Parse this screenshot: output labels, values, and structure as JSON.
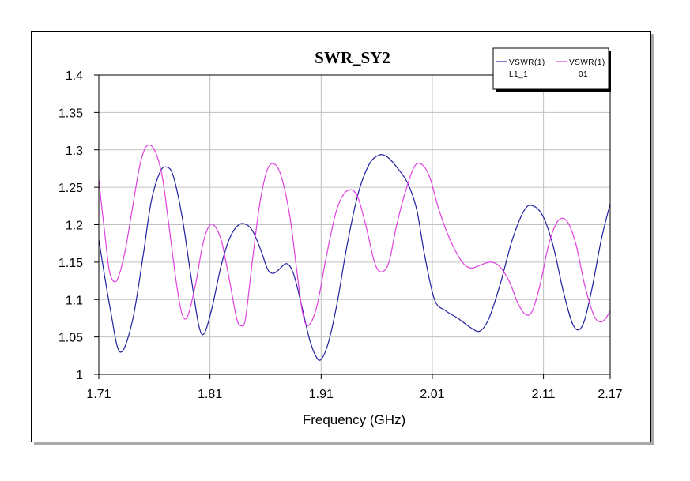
{
  "chart_data": {
    "type": "line",
    "title": "SWR_SY2",
    "xlabel": "Frequency (GHz)",
    "ylabel": "",
    "xlim": [
      1.71,
      2.17
    ],
    "ylim": [
      1.0,
      1.4
    ],
    "xticks": [
      1.71,
      1.81,
      1.91,
      2.01,
      2.11,
      2.17
    ],
    "xtick_labels": [
      "1.71",
      "1.81",
      "1.91",
      "2.01",
      "2.11",
      "2.17"
    ],
    "yticks": [
      1.0,
      1.05,
      1.1,
      1.15,
      1.2,
      1.25,
      1.3,
      1.35,
      1.4
    ],
    "ytick_labels": [
      "1",
      "1.05",
      "1.1",
      "1.15",
      "1.2",
      "1.25",
      "1.3",
      "1.35",
      "1.4"
    ],
    "grid": true,
    "legend_position": "top-right",
    "series": [
      {
        "name": "VSWR(1) L1_1",
        "legend_line1": "VSWR(1)",
        "legend_line2": "L1_1",
        "color": "#2020a0",
        "x": [
          1.71,
          1.72,
          1.729,
          1.74,
          1.75,
          1.757,
          1.765,
          1.771,
          1.777,
          1.785,
          1.793,
          1.8,
          1.805,
          1.812,
          1.82,
          1.828,
          1.836,
          1.843,
          1.849,
          1.856,
          1.862,
          1.867,
          1.872,
          1.879,
          1.885,
          1.892,
          1.899,
          1.905,
          1.91,
          1.917,
          1.925,
          1.933,
          1.943,
          1.953,
          1.962,
          1.97,
          1.979,
          1.988,
          1.996,
          2.003,
          2.012,
          2.022,
          2.033,
          2.045,
          2.053,
          2.061,
          2.071,
          2.082,
          2.093,
          2.101,
          2.11,
          2.119,
          2.128,
          2.137,
          2.145,
          2.153,
          2.162,
          2.17
        ],
        "values": [
          1.18,
          1.09,
          1.03,
          1.07,
          1.16,
          1.23,
          1.27,
          1.277,
          1.265,
          1.21,
          1.13,
          1.065,
          1.055,
          1.09,
          1.145,
          1.183,
          1.2,
          1.2,
          1.19,
          1.165,
          1.14,
          1.135,
          1.14,
          1.148,
          1.135,
          1.095,
          1.05,
          1.025,
          1.02,
          1.045,
          1.1,
          1.17,
          1.24,
          1.28,
          1.293,
          1.29,
          1.275,
          1.255,
          1.22,
          1.16,
          1.1,
          1.085,
          1.075,
          1.062,
          1.058,
          1.075,
          1.12,
          1.18,
          1.22,
          1.225,
          1.21,
          1.17,
          1.11,
          1.065,
          1.065,
          1.11,
          1.18,
          1.228
        ]
      },
      {
        "name": "VSWR(1) 01",
        "legend_line1": "VSWR(1)",
        "legend_line2": "01",
        "color": "#e040e0",
        "x": [
          1.71,
          1.716,
          1.72,
          1.726,
          1.733,
          1.74,
          1.747,
          1.753,
          1.76,
          1.767,
          1.773,
          1.78,
          1.785,
          1.79,
          1.797,
          1.803,
          1.808,
          1.813,
          1.82,
          1.827,
          1.834,
          1.838,
          1.842,
          1.848,
          1.855,
          1.862,
          1.869,
          1.875,
          1.882,
          1.888,
          1.893,
          1.898,
          1.906,
          1.915,
          1.924,
          1.933,
          1.942,
          1.95,
          1.958,
          1.964,
          1.971,
          1.978,
          1.986,
          1.994,
          2.001,
          2.008,
          2.016,
          2.026,
          2.037,
          2.045,
          2.053,
          2.062,
          2.07,
          2.079,
          2.087,
          2.094,
          2.1,
          2.107,
          2.115,
          2.123,
          2.131,
          2.139,
          2.147,
          2.155,
          2.161,
          2.166,
          2.17
        ],
        "values": [
          1.26,
          1.18,
          1.135,
          1.125,
          1.16,
          1.22,
          1.28,
          1.305,
          1.3,
          1.265,
          1.2,
          1.12,
          1.08,
          1.078,
          1.12,
          1.17,
          1.195,
          1.2,
          1.18,
          1.13,
          1.075,
          1.065,
          1.075,
          1.15,
          1.23,
          1.275,
          1.28,
          1.26,
          1.21,
          1.14,
          1.085,
          1.065,
          1.09,
          1.16,
          1.22,
          1.245,
          1.24,
          1.2,
          1.15,
          1.137,
          1.15,
          1.2,
          1.245,
          1.278,
          1.28,
          1.262,
          1.22,
          1.18,
          1.15,
          1.142,
          1.146,
          1.15,
          1.145,
          1.125,
          1.095,
          1.08,
          1.085,
          1.12,
          1.175,
          1.205,
          1.205,
          1.175,
          1.12,
          1.08,
          1.07,
          1.075,
          1.085
        ]
      }
    ]
  }
}
